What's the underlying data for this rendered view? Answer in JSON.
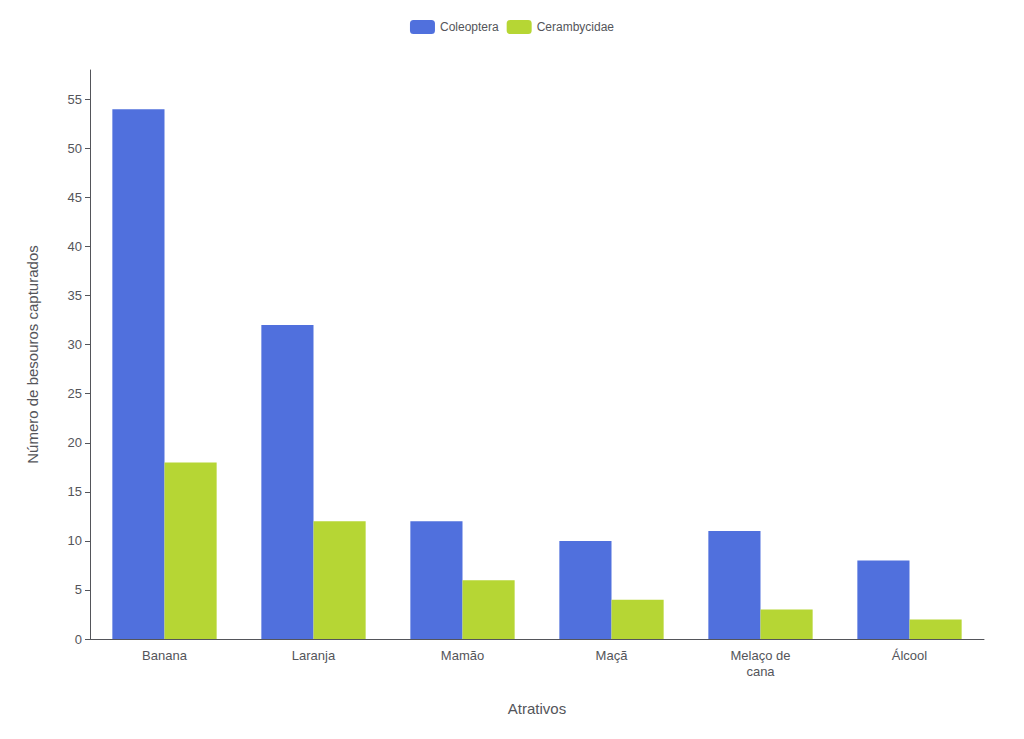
{
  "chart_data": {
    "type": "bar",
    "categories": [
      "Banana",
      "Laranja",
      "Mamão",
      "Maçã",
      "Melaço de\ncana",
      "Álcool"
    ],
    "series": [
      {
        "name": "Coleoptera",
        "values": [
          54,
          32,
          12,
          10,
          11,
          8
        ]
      },
      {
        "name": "Cerambycidae",
        "values": [
          18,
          12,
          6,
          4,
          3,
          2
        ]
      }
    ],
    "xlabel": "Atrativos",
    "ylabel": "Número de besouros capturados",
    "ylim": [
      0,
      58
    ],
    "yticks": [
      0,
      5,
      10,
      15,
      20,
      25,
      30,
      35,
      40,
      45,
      50,
      55
    ],
    "grid": false,
    "legend": "top"
  }
}
